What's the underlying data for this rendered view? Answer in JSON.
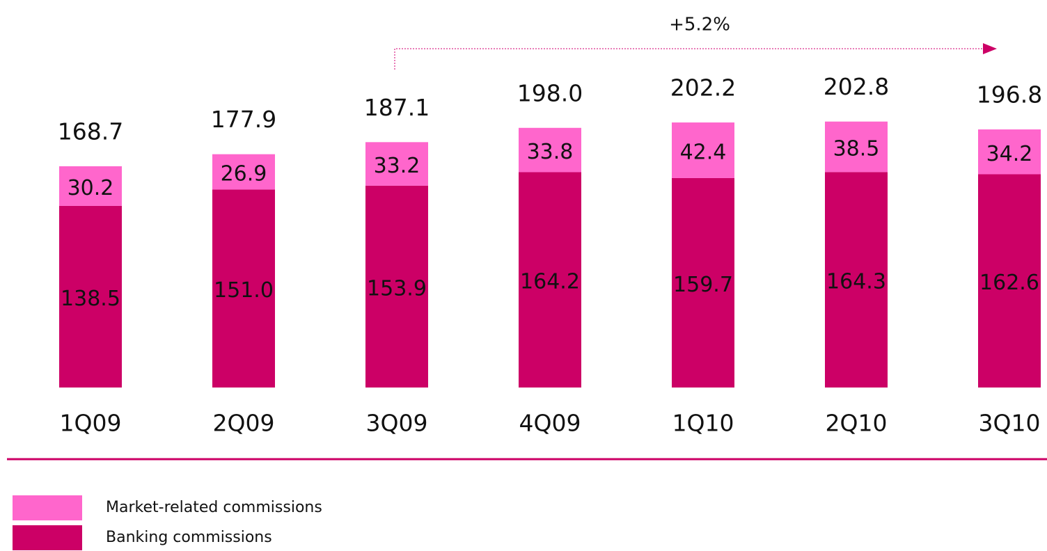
{
  "chart_data": {
    "type": "stacked_bar",
    "categories": [
      "1Q09",
      "2Q09",
      "3Q09",
      "4Q09",
      "1Q10",
      "2Q10",
      "3Q10"
    ],
    "series": [
      {
        "name": "Banking commissions",
        "color": "#cc0066",
        "values": [
          138.5,
          151.0,
          153.9,
          164.2,
          159.7,
          164.3,
          162.6
        ],
        "value_labels": [
          "138.5",
          "151.0",
          "153.9",
          "164.2",
          "159.7",
          "164.3",
          "162.6"
        ]
      },
      {
        "name": "Market-related commissions",
        "color": "#ff66cc",
        "values": [
          30.2,
          26.9,
          33.2,
          33.8,
          42.4,
          38.5,
          34.2
        ]
      }
    ],
    "totals": [
      168.7,
      177.9,
      187.1,
      198.0,
      202.2,
      202.8,
      196.8
    ],
    "total_labels": [
      "168.7",
      "177.9",
      "187.1",
      "198.0",
      "202.2",
      "202.8",
      "196.8"
    ],
    "annotation": "+5.2%"
  }
}
